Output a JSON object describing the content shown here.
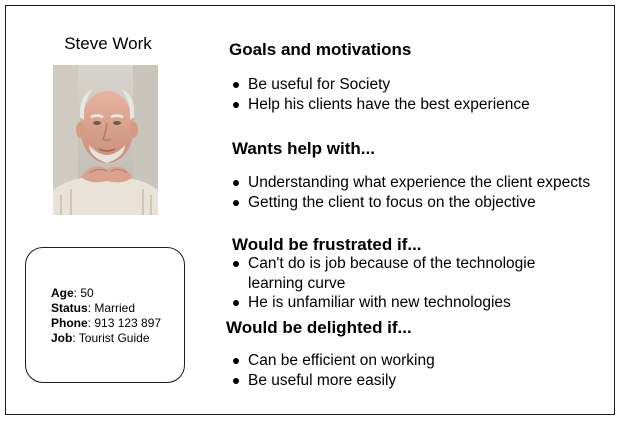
{
  "persona": {
    "name": "Steve Work",
    "photo": "person-portrait"
  },
  "info": {
    "age_label": "Age",
    "age_value": ": 50",
    "status_label": "Status",
    "status_value": ": Married",
    "phone_label": "Phone",
    "phone_value": ": 913 123 897",
    "job_label": "Job",
    "job_value": ": Tourist Guide"
  },
  "sections": {
    "goals": {
      "title": "Goals and motivations",
      "items": [
        "Be useful for Society",
        "Help his clients have the best experience"
      ]
    },
    "wants_help": {
      "title": "Wants help with...",
      "items": [
        "Understanding what experience the client expects",
        "Getting the client to focus on the objective"
      ]
    },
    "frustrated": {
      "title": "Would be frustrated if...",
      "items": [
        "Can't do is job because of the technologie",
        "learning curve",
        "He is unfamiliar with new technologies"
      ]
    },
    "delighted": {
      "title": "Would be delighted if...",
      "items": [
        "Can be efficient on working",
        "Be useful more easily"
      ]
    }
  }
}
